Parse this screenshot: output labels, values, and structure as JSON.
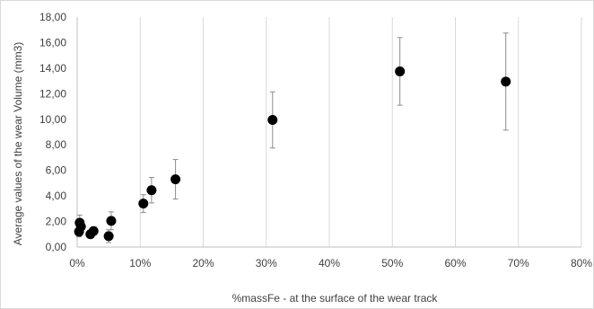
{
  "chart_data": {
    "type": "scatter",
    "title": "",
    "xlabel": "%massFe - at the surface of the wear track",
    "ylabel": "Average values of the  wear Volume (mm3)",
    "xlim": [
      0,
      0.8
    ],
    "ylim": [
      0,
      18
    ],
    "x_ticks": [
      0,
      0.1,
      0.2,
      0.3,
      0.4,
      0.5,
      0.6,
      0.7,
      0.8
    ],
    "x_tick_labels": [
      "0%",
      "10%",
      "20%",
      "30%",
      "40%",
      "50%",
      "60%",
      "70%",
      "80%"
    ],
    "y_ticks": [
      0,
      2,
      4,
      6,
      8,
      10,
      12,
      14,
      16,
      18
    ],
    "y_tick_labels": [
      "0,00",
      "2,00",
      "4,00",
      "6,00",
      "8,00",
      "10,00",
      "12,00",
      "14,00",
      "16,00",
      "18,00"
    ],
    "grid": {
      "vertical": true,
      "horizontal": false
    },
    "legend": "none",
    "colors": {
      "marker": "#000000",
      "grid": "#d9d9d9",
      "axis": "#bfbfbf",
      "error_bar": "#8c8c8c"
    },
    "points": [
      {
        "x": 0.003,
        "y": 1.2,
        "err": 0.4
      },
      {
        "x": 0.004,
        "y": 1.9,
        "err": 0.6
      },
      {
        "x": 0.006,
        "y": 1.6,
        "err": 0.4
      },
      {
        "x": 0.021,
        "y": 1.0,
        "err": 0.3
      },
      {
        "x": 0.026,
        "y": 1.25,
        "err": 0.3
      },
      {
        "x": 0.05,
        "y": 0.85,
        "err": 0.5
      },
      {
        "x": 0.054,
        "y": 2.05,
        "err": 0.7
      },
      {
        "x": 0.105,
        "y": 3.4,
        "err": 0.7
      },
      {
        "x": 0.118,
        "y": 4.45,
        "err": 1.0
      },
      {
        "x": 0.156,
        "y": 5.3,
        "err": 1.55
      },
      {
        "x": 0.31,
        "y": 9.95,
        "err": 2.2
      },
      {
        "x": 0.512,
        "y": 13.75,
        "err": 2.65
      },
      {
        "x": 0.68,
        "y": 12.95,
        "err": 3.8
      }
    ]
  }
}
